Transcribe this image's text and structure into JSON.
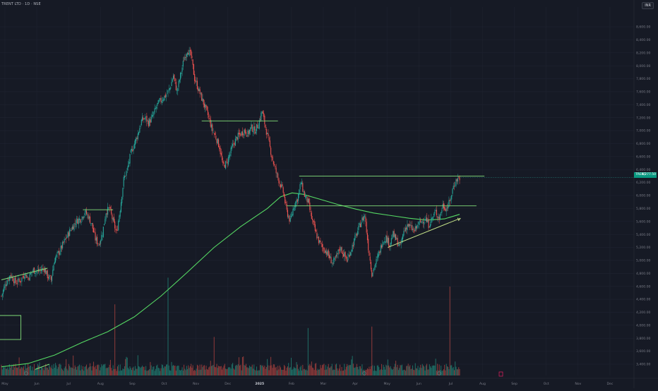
{
  "header": {
    "title": "TRENT LTD · 1D · NSE",
    "currency": "INR"
  },
  "price_tag": {
    "symbol": "TRENT",
    "value": "6,277.50"
  },
  "colors": {
    "background": "#161a25",
    "grid": "#1f2330",
    "up": "#26a69a",
    "down": "#ef5350",
    "ma": "#55d863",
    "levels": "#82e07a",
    "axis_text": "#787b86"
  },
  "chart_data": {
    "type": "candlestick",
    "price_axis": {
      "range": [
        3300,
        8800
      ],
      "ticks": [
        "3,400.00",
        "3,600.00",
        "3,800.00",
        "4,000.00",
        "4,200.00",
        "4,400.00",
        "4,600.00",
        "4,800.00",
        "5,000.00",
        "5,200.00",
        "5,400.00",
        "5,600.00",
        "5,800.00",
        "6,000.00",
        "6,200.00",
        "6,400.00",
        "6,600.00",
        "6,800.00",
        "7,000.00",
        "7,200.00",
        "7,400.00",
        "7,600.00",
        "7,800.00",
        "8,000.00",
        "8,200.00",
        "8,400.00",
        "8,600.00"
      ]
    },
    "time_axis": {
      "labels": [
        "May",
        "Jun",
        "Jul",
        "Aug",
        "Sep",
        "Oct",
        "Nov",
        "Dec",
        "2025",
        "Feb",
        "Mar",
        "Apr",
        "May",
        "Jun",
        "Jul",
        "Aug",
        "Sep",
        "Oct",
        "Nov",
        "Dec"
      ],
      "highlight": [
        "2025"
      ]
    },
    "trend_points": [
      {
        "i": 0,
        "c": 4450
      },
      {
        "i": 4,
        "c": 4620
      },
      {
        "i": 10,
        "c": 4780
      },
      {
        "i": 16,
        "c": 4660
      },
      {
        "i": 22,
        "c": 4700
      },
      {
        "i": 26,
        "c": 4800
      },
      {
        "i": 30,
        "c": 4730
      },
      {
        "i": 36,
        "c": 4850
      },
      {
        "i": 42,
        "c": 4830
      },
      {
        "i": 48,
        "c": 4880
      },
      {
        "i": 52,
        "c": 4760
      },
      {
        "i": 56,
        "c": 4700
      },
      {
        "i": 60,
        "c": 5020
      },
      {
        "i": 66,
        "c": 5150
      },
      {
        "i": 72,
        "c": 5320
      },
      {
        "i": 78,
        "c": 5470
      },
      {
        "i": 84,
        "c": 5600
      },
      {
        "i": 90,
        "c": 5650
      },
      {
        "i": 94,
        "c": 5750
      },
      {
        "i": 98,
        "c": 5680
      },
      {
        "i": 102,
        "c": 5550
      },
      {
        "i": 106,
        "c": 5330
      },
      {
        "i": 110,
        "c": 5250
      },
      {
        "i": 114,
        "c": 5420
      },
      {
        "i": 118,
        "c": 5750
      },
      {
        "i": 122,
        "c": 5800
      },
      {
        "i": 126,
        "c": 5600
      },
      {
        "i": 130,
        "c": 5420
      },
      {
        "i": 134,
        "c": 5800
      },
      {
        "i": 138,
        "c": 6250
      },
      {
        "i": 142,
        "c": 6400
      },
      {
        "i": 146,
        "c": 6650
      },
      {
        "i": 150,
        "c": 6800
      },
      {
        "i": 154,
        "c": 6950
      },
      {
        "i": 158,
        "c": 7150
      },
      {
        "i": 162,
        "c": 7200
      },
      {
        "i": 166,
        "c": 7120
      },
      {
        "i": 170,
        "c": 7200
      },
      {
        "i": 176,
        "c": 7400
      },
      {
        "i": 182,
        "c": 7500
      },
      {
        "i": 186,
        "c": 7550
      },
      {
        "i": 190,
        "c": 7650
      },
      {
        "i": 194,
        "c": 7850
      },
      {
        "i": 198,
        "c": 7600
      },
      {
        "i": 202,
        "c": 7850
      },
      {
        "i": 206,
        "c": 8100
      },
      {
        "i": 210,
        "c": 8250
      },
      {
        "i": 214,
        "c": 8150
      },
      {
        "i": 218,
        "c": 7800
      },
      {
        "i": 222,
        "c": 7650
      },
      {
        "i": 226,
        "c": 7500
      },
      {
        "i": 230,
        "c": 7350
      },
      {
        "i": 234,
        "c": 7200
      },
      {
        "i": 238,
        "c": 7000
      },
      {
        "i": 242,
        "c": 6900
      },
      {
        "i": 246,
        "c": 6750
      },
      {
        "i": 250,
        "c": 6450
      },
      {
        "i": 254,
        "c": 6500
      },
      {
        "i": 258,
        "c": 6650
      },
      {
        "i": 262,
        "c": 6800
      },
      {
        "i": 266,
        "c": 6900
      },
      {
        "i": 270,
        "c": 6950
      },
      {
        "i": 274,
        "c": 7000
      },
      {
        "i": 278,
        "c": 6950
      },
      {
        "i": 282,
        "c": 7050
      },
      {
        "i": 286,
        "c": 7000
      },
      {
        "i": 290,
        "c": 7100
      },
      {
        "i": 294,
        "c": 7300
      },
      {
        "i": 298,
        "c": 7050
      },
      {
        "i": 302,
        "c": 6800
      },
      {
        "i": 306,
        "c": 6550
      },
      {
        "i": 310,
        "c": 6350
      },
      {
        "i": 314,
        "c": 6200
      },
      {
        "i": 318,
        "c": 6050
      },
      {
        "i": 322,
        "c": 5750
      },
      {
        "i": 326,
        "c": 5600
      },
      {
        "i": 330,
        "c": 5850
      },
      {
        "i": 334,
        "c": 5950
      },
      {
        "i": 338,
        "c": 6200
      },
      {
        "i": 342,
        "c": 6000
      },
      {
        "i": 346,
        "c": 5900
      },
      {
        "i": 350,
        "c": 5650
      },
      {
        "i": 354,
        "c": 5450
      },
      {
        "i": 358,
        "c": 5300
      },
      {
        "i": 362,
        "c": 5200
      },
      {
        "i": 366,
        "c": 5150
      },
      {
        "i": 370,
        "c": 5050
      },
      {
        "i": 374,
        "c": 4950
      },
      {
        "i": 378,
        "c": 5050
      },
      {
        "i": 382,
        "c": 5200
      },
      {
        "i": 386,
        "c": 5100
      },
      {
        "i": 390,
        "c": 5000
      },
      {
        "i": 394,
        "c": 5150
      },
      {
        "i": 398,
        "c": 5300
      },
      {
        "i": 402,
        "c": 5450
      },
      {
        "i": 406,
        "c": 5600
      },
      {
        "i": 410,
        "c": 5700
      },
      {
        "i": 414,
        "c": 5200
      },
      {
        "i": 418,
        "c": 4800
      },
      {
        "i": 422,
        "c": 4950
      },
      {
        "i": 426,
        "c": 5100
      },
      {
        "i": 430,
        "c": 5300
      },
      {
        "i": 434,
        "c": 5350
      },
      {
        "i": 438,
        "c": 5250
      },
      {
        "i": 442,
        "c": 5400
      },
      {
        "i": 446,
        "c": 5300
      },
      {
        "i": 450,
        "c": 5200
      },
      {
        "i": 454,
        "c": 5450
      },
      {
        "i": 458,
        "c": 5550
      },
      {
        "i": 462,
        "c": 5500
      },
      {
        "i": 466,
        "c": 5450
      },
      {
        "i": 470,
        "c": 5550
      },
      {
        "i": 474,
        "c": 5600
      },
      {
        "i": 478,
        "c": 5650
      },
      {
        "i": 482,
        "c": 5550
      },
      {
        "i": 486,
        "c": 5650
      },
      {
        "i": 490,
        "c": 5750
      },
      {
        "i": 494,
        "c": 5650
      },
      {
        "i": 498,
        "c": 5850
      },
      {
        "i": 502,
        "c": 5800
      },
      {
        "i": 506,
        "c": 5900
      },
      {
        "i": 510,
        "c": 6150
      },
      {
        "i": 514,
        "c": 6250
      },
      {
        "i": 517,
        "c": 6277
      }
    ],
    "moving_average": [
      {
        "i": 0,
        "v": 3360
      },
      {
        "i": 30,
        "v": 3410
      },
      {
        "i": 60,
        "v": 3540
      },
      {
        "i": 90,
        "v": 3730
      },
      {
        "i": 120,
        "v": 3900
      },
      {
        "i": 150,
        "v": 4130
      },
      {
        "i": 180,
        "v": 4450
      },
      {
        "i": 210,
        "v": 4820
      },
      {
        "i": 240,
        "v": 5200
      },
      {
        "i": 270,
        "v": 5520
      },
      {
        "i": 300,
        "v": 5800
      },
      {
        "i": 315,
        "v": 5980
      },
      {
        "i": 328,
        "v": 6040
      },
      {
        "i": 340,
        "v": 6020
      },
      {
        "i": 360,
        "v": 5940
      },
      {
        "i": 380,
        "v": 5860
      },
      {
        "i": 400,
        "v": 5790
      },
      {
        "i": 420,
        "v": 5730
      },
      {
        "i": 440,
        "v": 5690
      },
      {
        "i": 460,
        "v": 5650
      },
      {
        "i": 480,
        "v": 5620
      },
      {
        "i": 500,
        "v": 5640
      },
      {
        "i": 517,
        "v": 5710
      }
    ],
    "horizontal_levels": [
      {
        "price": 4150,
        "i_start": -4,
        "i_end": 22
      },
      {
        "price": 5780,
        "i_start": 92,
        "i_end": 126
      },
      {
        "price": 7150,
        "i_start": 226,
        "i_end": 312
      },
      {
        "price": 6300,
        "i_start": 336,
        "i_end": 545
      },
      {
        "price": 5840,
        "i_start": 322,
        "i_end": 536
      }
    ],
    "trendlines": [
      {
        "from": {
          "i": 0,
          "p": 4700
        },
        "to": {
          "i": 52,
          "p": 4880
        }
      },
      {
        "from": {
          "i": 436,
          "p": 5200
        },
        "to": {
          "i": 518,
          "p": 5650
        },
        "arrow": true
      },
      {
        "from": {
          "i": 38,
          "p": 3320
        },
        "to": {
          "i": 54,
          "p": 3400
        }
      }
    ],
    "box": {
      "i_start": -4,
      "i_end": 22,
      "p_top": 4150,
      "p_bottom": 3780
    },
    "volume_spikes": [
      {
        "i": 128,
        "v": 0.48
      },
      {
        "i": 188,
        "v": 0.66
      },
      {
        "i": 240,
        "v": 0.26
      },
      {
        "i": 346,
        "v": 0.32
      },
      {
        "i": 418,
        "v": 0.33
      },
      {
        "i": 506,
        "v": 0.6
      }
    ],
    "last_price": 6277.5
  }
}
